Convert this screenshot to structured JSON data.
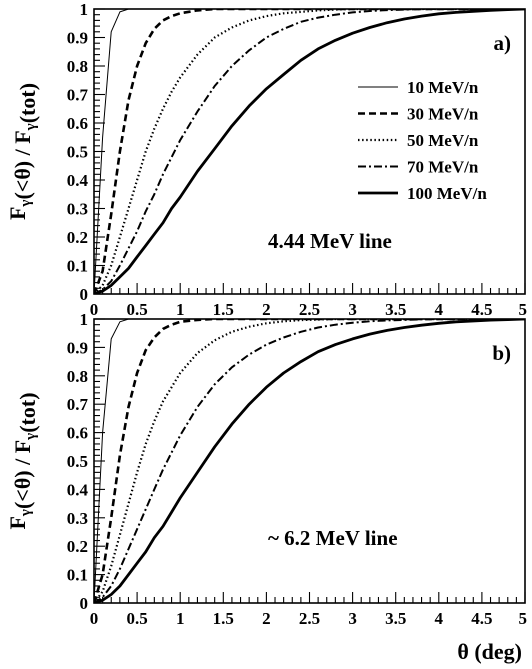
{
  "chart_data": [
    {
      "type": "line",
      "panel_label": "a)",
      "annotation": "4.44 MeV line",
      "ylabel": "F(<θ) / F(tot)",
      "xlabel": "",
      "xlim": [
        0,
        5
      ],
      "ylim": [
        0,
        1
      ],
      "x_ticks": [
        "0",
        "0.5",
        "1",
        "1.5",
        "2",
        "2.5",
        "3",
        "3.5",
        "4",
        "4.5",
        "5"
      ],
      "y_ticks": [
        "0",
        "0.1",
        "0.2",
        "0.3",
        "0.4",
        "0.5",
        "0.6",
        "0.7",
        "0.8",
        "0.9",
        "1"
      ],
      "legend_position": "top-right",
      "x": [
        0,
        0.1,
        0.2,
        0.3,
        0.4,
        0.5,
        0.6,
        0.7,
        0.8,
        0.9,
        1.0,
        1.2,
        1.4,
        1.6,
        1.8,
        2.0,
        2.2,
        2.4,
        2.6,
        2.8,
        3.0,
        3.2,
        3.4,
        3.6,
        3.8,
        4.0,
        4.2,
        4.4,
        4.6,
        4.8,
        5.0
      ],
      "series": [
        {
          "name": "10 MeV/n",
          "style": "thin-solid",
          "values": [
            0,
            0.55,
            0.92,
            0.99,
            1.0,
            1.0,
            1.0,
            1.0,
            1.0,
            1.0,
            1.0,
            1.0,
            1.0,
            1.0,
            1.0,
            1.0,
            1.0,
            1.0,
            1.0,
            1.0,
            1.0,
            1.0,
            1.0,
            1.0,
            1.0,
            1.0,
            1.0,
            1.0,
            1.0,
            1.0,
            1.0
          ]
        },
        {
          "name": "30 MeV/n",
          "style": "dashed",
          "values": [
            0,
            0.08,
            0.28,
            0.5,
            0.68,
            0.8,
            0.88,
            0.93,
            0.96,
            0.975,
            0.985,
            0.995,
            1.0,
            1.0,
            1.0,
            1.0,
            1.0,
            1.0,
            1.0,
            1.0,
            1.0,
            1.0,
            1.0,
            1.0,
            1.0,
            1.0,
            1.0,
            1.0,
            1.0,
            1.0,
            1.0
          ]
        },
        {
          "name": "50 MeV/n",
          "style": "dotted",
          "values": [
            0,
            0.03,
            0.1,
            0.2,
            0.3,
            0.4,
            0.5,
            0.58,
            0.65,
            0.71,
            0.76,
            0.84,
            0.9,
            0.935,
            0.96,
            0.975,
            0.985,
            0.99,
            0.995,
            0.998,
            1.0,
            1.0,
            1.0,
            1.0,
            1.0,
            1.0,
            1.0,
            1.0,
            1.0,
            1.0,
            1.0
          ]
        },
        {
          "name": "70 MeV/n",
          "style": "dash-dot",
          "values": [
            0,
            0.015,
            0.045,
            0.1,
            0.16,
            0.22,
            0.29,
            0.35,
            0.42,
            0.48,
            0.54,
            0.64,
            0.73,
            0.8,
            0.855,
            0.9,
            0.93,
            0.955,
            0.97,
            0.98,
            0.988,
            0.993,
            0.996,
            0.998,
            1.0,
            1.0,
            1.0,
            1.0,
            1.0,
            1.0,
            1.0
          ]
        },
        {
          "name": "100 MeV/n",
          "style": "thick-solid",
          "values": [
            0,
            0.01,
            0.03,
            0.06,
            0.09,
            0.13,
            0.17,
            0.21,
            0.25,
            0.3,
            0.34,
            0.43,
            0.51,
            0.59,
            0.66,
            0.72,
            0.77,
            0.82,
            0.86,
            0.89,
            0.915,
            0.935,
            0.952,
            0.965,
            0.975,
            0.983,
            0.988,
            0.992,
            0.995,
            0.998,
            1.0
          ]
        }
      ]
    },
    {
      "type": "line",
      "panel_label": "b)",
      "annotation": "~ 6.2 MeV line",
      "ylabel": "F(<θ) / F(tot)",
      "xlabel": "θ (deg)",
      "xlim": [
        0,
        5
      ],
      "ylim": [
        0,
        1
      ],
      "x_ticks": [
        "0",
        "0.5",
        "1",
        "1.5",
        "2",
        "2.5",
        "3",
        "3.5",
        "4",
        "4.5",
        "5"
      ],
      "y_ticks": [
        "0",
        "0.1",
        "0.2",
        "0.3",
        "0.4",
        "0.5",
        "0.6",
        "0.7",
        "0.8",
        "0.9",
        "1"
      ],
      "x": [
        0,
        0.1,
        0.2,
        0.3,
        0.4,
        0.5,
        0.6,
        0.7,
        0.8,
        0.9,
        1.0,
        1.2,
        1.4,
        1.6,
        1.8,
        2.0,
        2.2,
        2.4,
        2.6,
        2.8,
        3.0,
        3.2,
        3.4,
        3.6,
        3.8,
        4.0,
        4.2,
        4.4,
        4.6,
        4.8,
        5.0
      ],
      "series": [
        {
          "name": "10 MeV/n",
          "style": "thin-solid",
          "values": [
            0,
            0.6,
            0.93,
            0.99,
            1.0,
            1.0,
            1.0,
            1.0,
            1.0,
            1.0,
            1.0,
            1.0,
            1.0,
            1.0,
            1.0,
            1.0,
            1.0,
            1.0,
            1.0,
            1.0,
            1.0,
            1.0,
            1.0,
            1.0,
            1.0,
            1.0,
            1.0,
            1.0,
            1.0,
            1.0,
            1.0
          ]
        },
        {
          "name": "30 MeV/n",
          "style": "dashed",
          "values": [
            0,
            0.1,
            0.3,
            0.52,
            0.69,
            0.81,
            0.89,
            0.935,
            0.965,
            0.98,
            0.99,
            0.997,
            1.0,
            1.0,
            1.0,
            1.0,
            1.0,
            1.0,
            1.0,
            1.0,
            1.0,
            1.0,
            1.0,
            1.0,
            1.0,
            1.0,
            1.0,
            1.0,
            1.0,
            1.0,
            1.0
          ]
        },
        {
          "name": "50 MeV/n",
          "style": "dotted",
          "values": [
            0,
            0.04,
            0.13,
            0.24,
            0.35,
            0.46,
            0.56,
            0.64,
            0.71,
            0.76,
            0.81,
            0.88,
            0.925,
            0.955,
            0.973,
            0.985,
            0.992,
            0.996,
            0.998,
            1.0,
            1.0,
            1.0,
            1.0,
            1.0,
            1.0,
            1.0,
            1.0,
            1.0,
            1.0,
            1.0,
            1.0
          ]
        },
        {
          "name": "70 MeV/n",
          "style": "dash-dot",
          "values": [
            0,
            0.02,
            0.06,
            0.12,
            0.19,
            0.26,
            0.33,
            0.4,
            0.47,
            0.53,
            0.59,
            0.69,
            0.77,
            0.83,
            0.875,
            0.91,
            0.935,
            0.955,
            0.97,
            0.98,
            0.987,
            0.992,
            0.995,
            0.997,
            0.999,
            1.0,
            1.0,
            1.0,
            1.0,
            1.0,
            1.0
          ]
        },
        {
          "name": "100 MeV/n",
          "style": "thick-solid",
          "values": [
            0,
            0.01,
            0.03,
            0.06,
            0.1,
            0.14,
            0.18,
            0.23,
            0.27,
            0.32,
            0.37,
            0.46,
            0.55,
            0.63,
            0.7,
            0.76,
            0.81,
            0.85,
            0.885,
            0.91,
            0.93,
            0.947,
            0.96,
            0.97,
            0.978,
            0.985,
            0.99,
            0.993,
            0.996,
            0.998,
            1.0
          ]
        }
      ]
    }
  ]
}
